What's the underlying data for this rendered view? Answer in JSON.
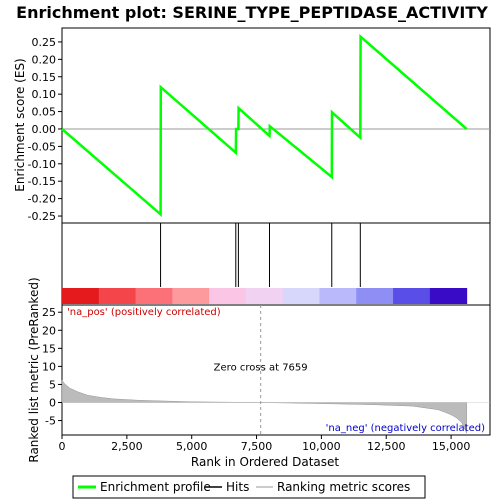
{
  "chart_data": {
    "type": "line",
    "title": "Enrichment plot: SERINE_TYPE_PEPTIDASE_ACTIVITY",
    "top_panel": {
      "ylabel": "Enrichment score (ES)",
      "ylim": [
        -0.27,
        0.29
      ],
      "yticks": [
        -0.25,
        -0.2,
        -0.15,
        -0.1,
        -0.05,
        0.0,
        0.05,
        0.1,
        0.15,
        0.2,
        0.25
      ],
      "ytick_labels": [
        "-0.25",
        "-0.20",
        "-0.15",
        "-0.10",
        "-0.05",
        "0.00",
        "0.05",
        "0.10",
        "0.15",
        "0.20",
        "0.25"
      ],
      "series": [
        {
          "name": "Enrichment profile",
          "color": "#00ff00",
          "x": [
            0,
            3800,
            3810,
            6700,
            6710,
            6800,
            6810,
            8000,
            8010,
            10400,
            10410,
            11500,
            11510,
            15600
          ],
          "y": [
            0.0,
            -0.245,
            0.12,
            -0.068,
            0.0,
            0.0,
            0.06,
            -0.02,
            0.008,
            -0.138,
            0.048,
            -0.025,
            0.265,
            0.0
          ]
        }
      ]
    },
    "hits": {
      "name": "Hits",
      "x": [
        3800,
        6700,
        6800,
        8000,
        10400,
        11500
      ]
    },
    "bottom_panel": {
      "ylabel": "Ranked list metric (PreRanked)",
      "ylim": [
        -9,
        27
      ],
      "yticks": [
        -5,
        0,
        5,
        10,
        15,
        20,
        25
      ],
      "ytick_labels": [
        "-5",
        "0",
        "5",
        "10",
        "15",
        "20",
        "25"
      ],
      "series_name": "Ranking metric scores",
      "metric_profile": {
        "x": [
          0,
          100,
          300,
          600,
          1000,
          1500,
          2000,
          3000,
          5000,
          7659,
          10000,
          12000,
          13500,
          14500,
          14800,
          15000,
          15200,
          15400,
          15500,
          15600
        ],
        "y": [
          6.2,
          5.2,
          4.0,
          3.0,
          2.0,
          1.4,
          1.0,
          0.6,
          0.2,
          0.0,
          -0.3,
          -0.6,
          -1.0,
          -2.0,
          -2.8,
          -3.4,
          -4.2,
          -5.5,
          -7.0,
          -8.5
        ]
      },
      "zero_cross_label": "Zero cross at 7659",
      "zero_cross_x": 7659,
      "pos_label": "'na_pos' (positively correlated)",
      "neg_label": "'na_neg' (negatively correlated)"
    },
    "xaxis": {
      "xlabel": "Rank in Ordered Dataset",
      "xlim": [
        0,
        16500
      ],
      "xticks": [
        0,
        2500,
        5000,
        7500,
        10000,
        12500,
        15000
      ],
      "xtick_labels": [
        "0",
        "2,500",
        "5,000",
        "7,500",
        "10,000",
        "12,500",
        "15,000"
      ],
      "n_genes": 15600
    },
    "colorbar_colors": [
      "#e41a1c",
      "#f4464a",
      "#fb7177",
      "#fd9a9d",
      "#fbc6e6",
      "#f2d2f3",
      "#d7d6fb",
      "#b9b9fb",
      "#8e8ef5",
      "#5a4ee8",
      "#3a0bc7"
    ],
    "legend": {
      "placement": "bottom",
      "items": [
        {
          "label": "Enrichment profile",
          "color": "#00ff00"
        },
        {
          "label": "Hits",
          "color": "#000000"
        },
        {
          "label": "Ranking metric scores",
          "color": "#bbbbbb"
        }
      ]
    }
  }
}
